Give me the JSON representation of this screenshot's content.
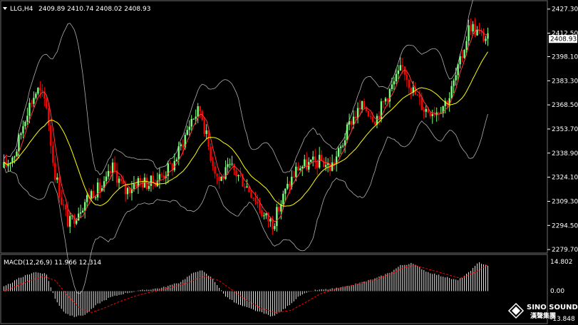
{
  "header": {
    "symbol": "LLG,H4",
    "ohlc": "2409.89 2410.74 2408.02 2408.93"
  },
  "price_axis": {
    "ticks": [
      "2427.30",
      "2412.50",
      "2398.10",
      "2383.30",
      "2368.50",
      "2353.70",
      "2338.90",
      "2324.10",
      "2309.30",
      "2294.50",
      "2279.70"
    ],
    "current_price": "2408.93"
  },
  "macd_panel": {
    "label": "MACD(12,26,9) 11.966 12.314",
    "ticks": [
      "14.802",
      "0.00",
      "-13.848"
    ]
  },
  "logo": {
    "name_en": "SINO SOUND",
    "name_cn": "漢聲集團"
  },
  "colors": {
    "background": "#000000",
    "bull": "#7CFF7C",
    "bear": "#FF0000",
    "ma_yellow": "#FFFF00",
    "ma_red": "#FF3B3B",
    "bands": "#B0B0B0",
    "macd_hist": "#E6E6E6",
    "macd_signal": "#FF0000",
    "price_tag_bg": "#FFFFFF"
  },
  "chart_data": {
    "type": "candlestick",
    "ylim": [
      2278,
      2432
    ],
    "ticks": [
      2427.3,
      2412.5,
      2398.1,
      2383.3,
      2368.5,
      2353.7,
      2338.9,
      2324.1,
      2309.3,
      2294.5,
      2279.7
    ],
    "candle_count": 228,
    "anchors": [
      [
        0,
        2330
      ],
      [
        8,
        2340
      ],
      [
        15,
        2365
      ],
      [
        22,
        2378
      ],
      [
        28,
        2370
      ],
      [
        33,
        2330
      ],
      [
        38,
        2310
      ],
      [
        43,
        2295
      ],
      [
        50,
        2305
      ],
      [
        58,
        2315
      ],
      [
        66,
        2318
      ],
      [
        72,
        2330
      ],
      [
        80,
        2315
      ],
      [
        88,
        2322
      ],
      [
        96,
        2320
      ],
      [
        104,
        2325
      ],
      [
        112,
        2332
      ],
      [
        118,
        2345
      ],
      [
        124,
        2360
      ],
      [
        130,
        2366
      ],
      [
        136,
        2340
      ],
      [
        142,
        2322
      ],
      [
        150,
        2330
      ],
      [
        158,
        2322
      ],
      [
        166,
        2312
      ],
      [
        172,
        2300
      ],
      [
        178,
        2296
      ],
      [
        186,
        2315
      ],
      [
        194,
        2330
      ],
      [
        202,
        2332
      ],
      [
        210,
        2334
      ],
      [
        216,
        2330
      ],
      [
        222,
        2340
      ],
      [
        230,
        2360
      ],
      [
        238,
        2368
      ],
      [
        246,
        2360
      ],
      [
        252,
        2372
      ],
      [
        258,
        2382
      ],
      [
        264,
        2392
      ],
      [
        270,
        2378
      ],
      [
        278,
        2366
      ],
      [
        286,
        2365
      ],
      [
        294,
        2372
      ],
      [
        302,
        2395
      ],
      [
        308,
        2418
      ],
      [
        314,
        2412
      ],
      [
        320,
        2408.93
      ]
    ],
    "macd": {
      "ylim": [
        -14.5,
        15.5
      ],
      "anchors": [
        [
          0,
          2
        ],
        [
          10,
          6
        ],
        [
          20,
          9
        ],
        [
          28,
          8
        ],
        [
          34,
          -4
        ],
        [
          40,
          -10
        ],
        [
          46,
          -12
        ],
        [
          54,
          -11
        ],
        [
          62,
          -6
        ],
        [
          70,
          -3
        ],
        [
          80,
          -1
        ],
        [
          92,
          0.5
        ],
        [
          104,
          1.5
        ],
        [
          116,
          4
        ],
        [
          124,
          8
        ],
        [
          130,
          10
        ],
        [
          138,
          6
        ],
        [
          146,
          -2
        ],
        [
          154,
          -6
        ],
        [
          162,
          -8
        ],
        [
          170,
          -10
        ],
        [
          178,
          -12
        ],
        [
          186,
          -8
        ],
        [
          196,
          -2
        ],
        [
          206,
          0.5
        ],
        [
          216,
          1
        ],
        [
          226,
          2
        ],
        [
          236,
          4
        ],
        [
          246,
          6
        ],
        [
          256,
          9
        ],
        [
          262,
          12
        ],
        [
          270,
          13
        ],
        [
          280,
          9
        ],
        [
          290,
          7
        ],
        [
          300,
          5
        ],
        [
          308,
          9
        ],
        [
          314,
          13.5
        ],
        [
          320,
          12
        ]
      ],
      "signal_anchors": [
        [
          0,
          0
        ],
        [
          14,
          4
        ],
        [
          26,
          7
        ],
        [
          34,
          5
        ],
        [
          42,
          -2
        ],
        [
          50,
          -8
        ],
        [
          58,
          -10
        ],
        [
          66,
          -8
        ],
        [
          76,
          -5
        ],
        [
          88,
          -2
        ],
        [
          100,
          0
        ],
        [
          112,
          2
        ],
        [
          122,
          4
        ],
        [
          132,
          7
        ],
        [
          142,
          5
        ],
        [
          150,
          1
        ],
        [
          160,
          -4
        ],
        [
          170,
          -8
        ],
        [
          180,
          -10
        ],
        [
          190,
          -9
        ],
        [
          200,
          -5
        ],
        [
          210,
          -1
        ],
        [
          220,
          1
        ],
        [
          232,
          3
        ],
        [
          244,
          5
        ],
        [
          256,
          8
        ],
        [
          264,
          11
        ],
        [
          272,
          12
        ],
        [
          282,
          10
        ],
        [
          292,
          8
        ],
        [
          302,
          6
        ],
        [
          312,
          9
        ],
        [
          320,
          12.3
        ]
      ]
    }
  }
}
